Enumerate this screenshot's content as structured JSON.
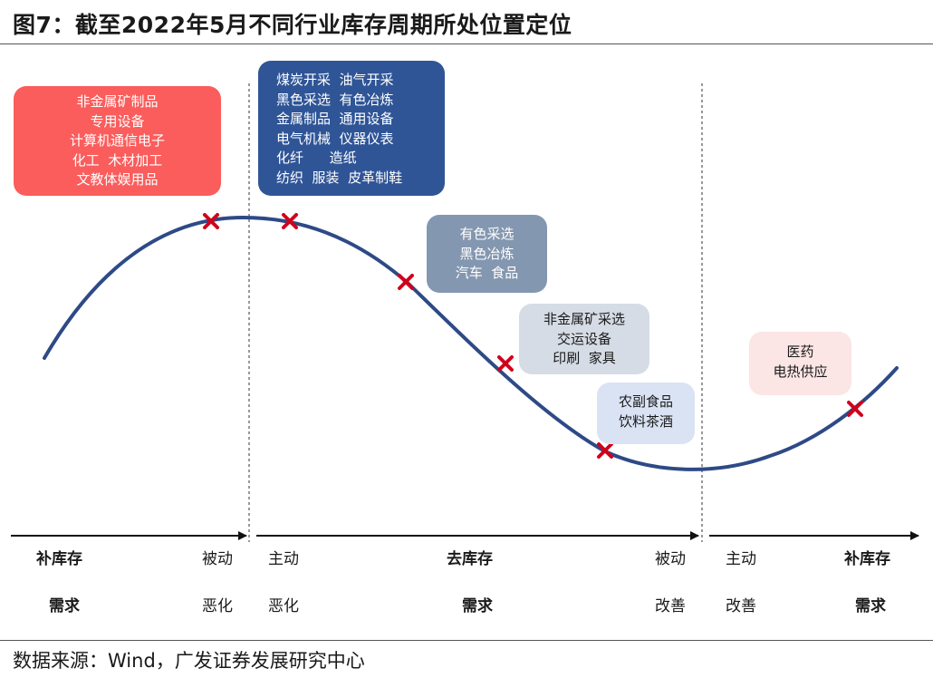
{
  "figure": {
    "title": "图7：截至2022年5月不同行业库存周期所处位置定位",
    "source": "数据来源：Wind，广发证券发展研究中心"
  },
  "colors": {
    "curve": "#2e4a86",
    "marker": "#d0021b",
    "box_red": "#fa5d5c",
    "box_navy": "#2f5597",
    "box_slate": "#8497b0",
    "box_lightgray": "#d6dce5",
    "box_lightblue": "#dae3f3",
    "box_pink": "#fbe5e5"
  },
  "boxes": {
    "red": "非金属矿制品\n专用设备\n计算机通信电子\n化工  木材加工\n文教体娱用品",
    "navy": "煤炭开采  油气开采\n黑色采选  有色冶炼\n金属制品  通用设备\n电气机械  仪器仪表\n化纤      造纸\n纺织  服装  皮革制鞋",
    "slate": "有色采选\n黑色冶炼\n汽车  食品",
    "lightgray": "非金属矿采选\n交运设备\n印刷  家具",
    "lightblue": "农副食品\n饮料茶酒",
    "pink": "医药\n电热供应"
  },
  "phases": {
    "p1": {
      "name_a": "补库存",
      "name_b": "需求",
      "end_a": "被动",
      "end_b": "恶化"
    },
    "p2": {
      "start_a": "主动",
      "start_b": "恶化",
      "name_a": "去库存",
      "name_b": "需求",
      "end_a": "被动",
      "end_b": "改善"
    },
    "p3": {
      "start_a": "主动",
      "start_b": "改善",
      "name_a": "补库存",
      "name_b": "需求"
    }
  }
}
